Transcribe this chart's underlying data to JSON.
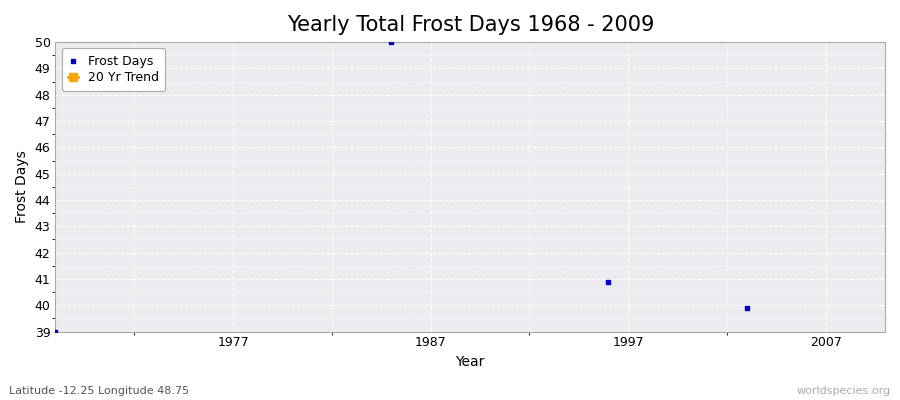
{
  "title": "Yearly Total Frost Days 1968 - 2009",
  "xlabel": "Year",
  "ylabel": "Frost Days",
  "xlim": [
    1968,
    2010
  ],
  "ylim": [
    39,
    50
  ],
  "yticks": [
    39,
    40,
    41,
    42,
    43,
    44,
    45,
    46,
    47,
    48,
    49,
    50
  ],
  "xticks": [
    1977,
    1987,
    1997,
    2007
  ],
  "fig_bg_color": "#ffffff",
  "plot_bg_color": "#ebebf0",
  "frost_days_color": "#0000cc",
  "trend_color": "#ffa500",
  "frost_years": [
    1968,
    1985,
    1996,
    2003
  ],
  "frost_values": [
    39,
    50,
    40.9,
    39.9
  ],
  "trend_years": [],
  "trend_values": [],
  "subtitle_left": "Latitude -12.25 Longitude 48.75",
  "subtitle_right": "worldspecies.org",
  "title_fontsize": 15,
  "axis_fontsize": 10,
  "tick_fontsize": 9,
  "subtitle_fontsize": 8
}
